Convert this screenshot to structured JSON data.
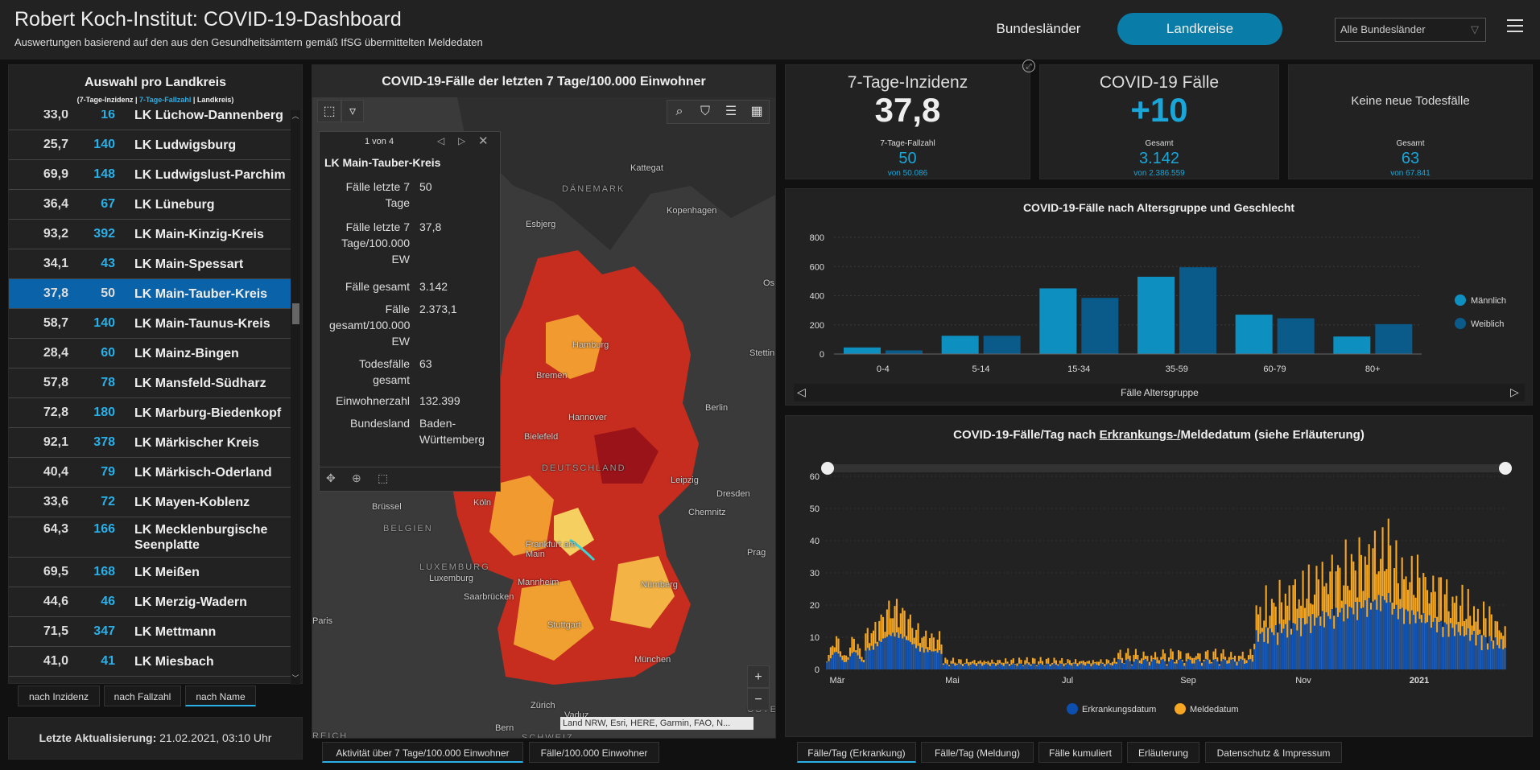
{
  "header": {
    "title": "Robert Koch-Institut: COVID-19-Dashboard",
    "subtitle": "Auswertungen basierend auf den aus den Gesundheitsämtern gemäß IfSG übermittelten Meldedaten",
    "nav_bundeslaender": "Bundesländer",
    "nav_landkreise": "Landkreise",
    "select_value": "Alle Bundesländer"
  },
  "list": {
    "title": "Auswahl pro Landkreis",
    "legend_a": "(7-Tage-Inzidenz | ",
    "legend_b": "7-Tage-Fallzahl",
    "legend_c": " | Landkreis)",
    "rows": [
      {
        "inz": "33,0",
        "fz": "16",
        "name": "LK Lüchow-Dannenberg"
      },
      {
        "inz": "25,7",
        "fz": "140",
        "name": "LK Ludwigsburg"
      },
      {
        "inz": "69,9",
        "fz": "148",
        "name": "LK Ludwigslust-Parchim"
      },
      {
        "inz": "36,4",
        "fz": "67",
        "name": "LK Lüneburg"
      },
      {
        "inz": "93,2",
        "fz": "392",
        "name": "LK Main-Kinzig-Kreis"
      },
      {
        "inz": "34,1",
        "fz": "43",
        "name": "LK Main-Spessart"
      },
      {
        "inz": "37,8",
        "fz": "50",
        "name": "LK Main-Tauber-Kreis"
      },
      {
        "inz": "58,7",
        "fz": "140",
        "name": "LK Main-Taunus-Kreis"
      },
      {
        "inz": "28,4",
        "fz": "60",
        "name": "LK Mainz-Bingen"
      },
      {
        "inz": "57,8",
        "fz": "78",
        "name": "LK Mansfeld-Südharz"
      },
      {
        "inz": "72,8",
        "fz": "180",
        "name": "LK Marburg-Biedenkopf"
      },
      {
        "inz": "92,1",
        "fz": "378",
        "name": "LK Märkischer Kreis"
      },
      {
        "inz": "40,4",
        "fz": "79",
        "name": "LK Märkisch-Oderland"
      },
      {
        "inz": "33,6",
        "fz": "72",
        "name": "LK Mayen-Koblenz"
      },
      {
        "inz": "64,3",
        "fz": "166",
        "name": "LK Mecklenburgische Seenplatte"
      },
      {
        "inz": "69,5",
        "fz": "168",
        "name": "LK Meißen"
      },
      {
        "inz": "44,6",
        "fz": "46",
        "name": "LK Merzig-Wadern"
      },
      {
        "inz": "71,5",
        "fz": "347",
        "name": "LK Mettmann"
      },
      {
        "inz": "41,0",
        "fz": "41",
        "name": "LK Miesbach"
      }
    ],
    "sort_inzidenz": "nach Inzidenz",
    "sort_fallzahl": "nach Fallzahl",
    "sort_name": "nach Name",
    "update_label": "Letzte Aktualisierung: ",
    "update_value": "21.02.2021, 03:10 Uhr"
  },
  "map": {
    "title": "COVID-19-Fälle der letzten 7 Tage/100.000 Einwohner",
    "labels": [
      "DÄNEMARK",
      "Kattegat",
      "Kopenhagen",
      "Esbjerg",
      "Hamburg",
      "Bremen",
      "Hannover",
      "Berlin",
      "Bielefeld",
      "Stettin",
      "DEUTSCHLAND",
      "Leipzig",
      "Dresden",
      "Köln",
      "Chemnitz",
      "Brüssel",
      "BELGIEN",
      "Frankfurt am Main",
      "Prag",
      "LUXEMBURG",
      "Luxemburg",
      "Mannheim",
      "Nürnberg",
      "Saarbrücken",
      "Stuttgart",
      "München",
      "Zürich",
      "Vaduz",
      "ÖSTERR",
      "Paris",
      "Bern",
      "SCHWEIZ",
      "REICH",
      "Os"
    ],
    "attribution": "Land NRW, Esri, HERE, Garmin, FAO, N...",
    "popup": {
      "pager": "1 von 4",
      "title": "LK Main-Tauber-Kreis",
      "rows": [
        {
          "k": "Fälle letzte 7 Tage",
          "v": "50"
        },
        {
          "k": "Fälle letzte 7 Tage/100.000 EW",
          "v": "37,8"
        },
        {
          "k": "Fälle gesamt",
          "v": "3.142"
        },
        {
          "k": "Fälle gesamt/100.000 EW",
          "v": "2.373,1"
        },
        {
          "k": "Todesfälle gesamt",
          "v": "63"
        },
        {
          "k": "Einwohnerzahl",
          "v": "132.399"
        },
        {
          "k": "Bundesland",
          "v": "Baden-Württemberg"
        }
      ]
    },
    "tab_active": "Aktivität über 7 Tage/100.000 Einwohner",
    "tab_other": "Fälle/100.000 Einwohner",
    "zoom_in": "+",
    "zoom_out": "−"
  },
  "kpi": {
    "inz_title": "7-Tage-Inzidenz",
    "inz_value": "37,8",
    "inz_sub": "7-Tage-Fallzahl",
    "inz_sub_value": "50",
    "inz_sub_of": "von 50.086",
    "cases_title": "COVID-19 Fälle",
    "cases_value": "+10",
    "cases_sub": "Gesamt",
    "cases_sub_value": "3.142",
    "cases_sub_of": "von 2.386.559",
    "deaths_title": "Keine neue Todesfälle",
    "deaths_sub": "Gesamt",
    "deaths_sub_value": "63",
    "deaths_sub_of": "von 67.841"
  },
  "colors": {
    "accent": "#1aa6d8",
    "male": "#0d8fbf",
    "female": "#0a5a8a",
    "erkrankung": "#0d4fae",
    "melde": "#f5a623"
  },
  "chart_data": [
    {
      "type": "bar",
      "title": "COVID-19-Fälle nach Altersgruppe und Geschlecht",
      "xlabel": "Fälle Altersgruppe",
      "categories": [
        "0-4",
        "5-14",
        "15-34",
        "35-59",
        "60-79",
        "80+"
      ],
      "ylim": [
        0,
        800
      ],
      "yticks": [
        "0",
        "200",
        "400",
        "600",
        "800"
      ],
      "series": [
        {
          "name": "Männlich",
          "values": [
            45,
            125,
            450,
            530,
            270,
            120
          ]
        },
        {
          "name": "Weiblich",
          "values": [
            25,
            125,
            385,
            595,
            245,
            205
          ]
        }
      ],
      "legend": "right"
    },
    {
      "type": "bar",
      "title_a": "COVID-19-Fälle/Tag nach ",
      "title_b": "Erkrankungs-/",
      "title_c": "Meldedatum (siehe Erläuterung)",
      "ylim": [
        0,
        60
      ],
      "yticks": [
        "0",
        "10",
        "20",
        "30",
        "40",
        "50",
        "60"
      ],
      "xticks": [
        "Mär",
        "Mai",
        "Jul",
        "Sep",
        "Nov",
        "2021"
      ],
      "series": [
        {
          "name": "Erkrankungsdatum"
        },
        {
          "name": "Meldedatum"
        }
      ],
      "legend": "bottom",
      "tabs": [
        "Fälle/Tag (Erkrankung)",
        "Fälle/Tag (Meldung)",
        "Fälle kumuliert",
        "Erläuterung",
        "Datenschutz & Impressum"
      ]
    }
  ]
}
